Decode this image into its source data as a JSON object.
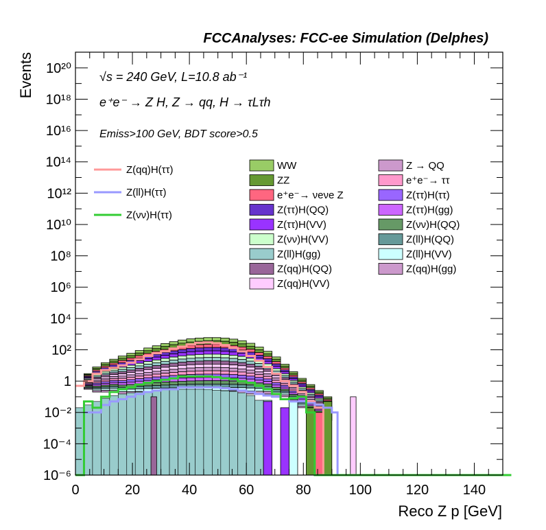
{
  "chart_data": {
    "type": "stacked-histogram",
    "title": "FCCAnalyses: FCC-ee Simulation (Delphes)",
    "annotations": {
      "line1": "√s = 240 GeV, L=10.8 ab⁻¹",
      "line2": "e⁺e⁻ → Z H, Z → qq, H → τLτh",
      "line3": "Emiss>100 GeV, BDT score>0.5"
    },
    "xlabel": "Reco Z p [GeV]",
    "ylabel": "Events",
    "xlim": [
      0,
      150
    ],
    "ylim": [
      1e-06,
      1e+21
    ],
    "yscale": "log",
    "x_ticks": [
      "0",
      "20",
      "40",
      "60",
      "80",
      "100",
      "120",
      "140"
    ],
    "y_ticks": [
      "10⁻⁶",
      "10⁻⁴",
      "10⁻²",
      "1",
      "10²",
      "10⁴",
      "10⁶",
      "10⁸",
      "10¹⁰",
      "10¹²",
      "10¹⁴",
      "10¹⁶",
      "10¹⁸",
      "10²⁰"
    ],
    "bin_width_gev": 3,
    "stack_order_top_to_bottom": [
      "WW",
      "ZZ",
      "e⁺e⁻→ νeνe Z",
      "Z(ττ)H(QQ)",
      "Z(ττ)H(VV)",
      "Z(νν)H(VV)",
      "Z(ll)H(gg)",
      "Z(qq)H(QQ)",
      "Z(qq)H(VV)",
      "Z → QQ",
      "e⁺e⁻→ ττ",
      "Z(ττ)H(ττ)",
      "Z(ττ)H(gg)",
      "Z(νν)H(QQ)",
      "Z(ll)H(QQ)",
      "Z(ll)H(VV)",
      "Z(qq)H(gg)"
    ],
    "stack_edges": {
      "x": [
        3,
        6,
        9,
        12,
        15,
        18,
        21,
        24,
        27,
        30,
        33,
        36,
        39,
        42,
        45,
        48,
        51,
        54,
        57,
        60,
        63,
        66,
        69,
        72,
        75,
        78,
        81,
        84,
        87
      ],
      "base": [
        0.3,
        0.2,
        0.2,
        0.2,
        0.15,
        0.15,
        0.15,
        0.15,
        0.15,
        0.15,
        0.15,
        0.15,
        0.15,
        0.15,
        0.15,
        0.15,
        0.15,
        0.15,
        0.15,
        0.15,
        0.15,
        0.15,
        0.1,
        0.1,
        0.05,
        0.02,
        0.01,
        0.005,
        0.003
      ],
      "top": [
        3,
        8,
        15,
        25,
        40,
        60,
        90,
        130,
        180,
        250,
        330,
        420,
        500,
        560,
        600,
        600,
        560,
        480,
        380,
        260,
        150,
        80,
        35,
        12,
        4,
        1.5,
        0.6,
        0.25,
        0.1
      ]
    },
    "stack_series": [
      {
        "name": "WW",
        "color": "#99cc66"
      },
      {
        "name": "ZZ",
        "color": "#669933"
      },
      {
        "name": "e⁺e⁻→ νeνe Z",
        "color": "#ff6680"
      },
      {
        "name": "Z(ττ)H(QQ)",
        "color": "#6633cc"
      },
      {
        "name": "Z(ττ)H(VV)",
        "color": "#9933ff"
      },
      {
        "name": "Z(νν)H(VV)",
        "color": "#ccffcc"
      },
      {
        "name": "Z(ll)H(gg)",
        "color": "#99cccc"
      },
      {
        "name": "Z(qq)H(QQ)",
        "color": "#996699"
      },
      {
        "name": "Z(qq)H(VV)",
        "color": "#ffccff"
      },
      {
        "name": "Z → QQ",
        "color": "#cc99cc"
      },
      {
        "name": "e⁺e⁻→ ττ",
        "color": "#ff99cc"
      },
      {
        "name": "Z(ττ)H(ττ)",
        "color": "#9966ff"
      },
      {
        "name": "Z(ττ)H(gg)",
        "color": "#cc66ff"
      },
      {
        "name": "Z(νν)H(QQ)",
        "color": "#669966"
      },
      {
        "name": "Z(ll)H(QQ)",
        "color": "#669999"
      },
      {
        "name": "Z(ll)H(VV)",
        "color": "#ccffff"
      },
      {
        "name": "Z(qq)H(gg)",
        "color": "#cc99cc"
      }
    ],
    "ll_gg_fill": {
      "x": [
        0,
        3,
        6,
        9,
        12,
        15,
        18,
        21,
        24,
        27,
        30,
        33,
        36,
        39,
        42,
        45,
        48,
        51,
        54,
        57,
        60,
        63,
        66
      ],
      "y": [
        0.02,
        0.03,
        0.05,
        0.08,
        0.12,
        0.15,
        0.18,
        0.2,
        0.22,
        0.25,
        0.28,
        0.3,
        0.3,
        0.3,
        0.3,
        0.28,
        0.26,
        0.24,
        0.22,
        0.18,
        0.12,
        0.06,
        0.06
      ]
    },
    "isolated_bars": [
      {
        "name": "Z(qq)H(QQ)",
        "x0": 26.5,
        "x1": 28.5,
        "y": 0.1,
        "color": "#996699"
      },
      {
        "name": "Z(qq)H(VV)",
        "x0": 96.5,
        "x1": 98.5,
        "y": 0.1,
        "color": "#ffccff"
      },
      {
        "name": "Z(ττ)H(VV)",
        "x0": 66,
        "x1": 69,
        "y": 0.05,
        "color": "#9933ff"
      },
      {
        "name": "Z(ττ)H(VV)",
        "x0": 72,
        "x1": 75,
        "y": 0.02,
        "color": "#9933ff"
      },
      {
        "name": "ZZ",
        "x0": 81,
        "x1": 84,
        "y": 0.02,
        "color": "#669933"
      },
      {
        "name": "ZZ",
        "x0": 87,
        "x1": 90,
        "y": 0.05,
        "color": "#669933"
      },
      {
        "name": "e⁺e⁻→ νeνe Z",
        "x0": 84,
        "x1": 87,
        "y": 0.01,
        "color": "#ff6680"
      },
      {
        "name": "Z(ll)H(VV)",
        "x0": 75,
        "x1": 78,
        "y": 0.05,
        "color": "#ccffff"
      }
    ],
    "line_series": [
      {
        "name": "Z(qq)H(ττ)",
        "color": "#ff9999",
        "x": [
          0,
          3,
          6,
          9,
          12,
          15,
          18,
          21,
          24,
          27,
          30,
          33,
          36,
          39,
          42,
          45,
          48,
          51,
          54,
          57,
          60,
          63,
          66,
          69,
          72,
          75,
          78,
          81,
          84,
          87
        ],
        "y": [
          0.5,
          1,
          3,
          5,
          7,
          10,
          15,
          25,
          40,
          60,
          80,
          120,
          160,
          220,
          280,
          300,
          260,
          200,
          130,
          80,
          40,
          20,
          8,
          3,
          1,
          0.5,
          0.2,
          0.05,
          0.02,
          1e-06
        ]
      },
      {
        "name": "Z(ll)H(ττ)",
        "color": "#9999ff",
        "x": [
          0,
          3,
          6,
          9,
          12,
          15,
          18,
          21,
          24,
          27,
          30,
          33,
          36,
          39,
          42,
          45,
          48,
          51,
          54,
          57,
          60,
          63,
          66,
          69,
          72,
          75,
          78,
          81,
          84,
          87,
          90,
          92,
          93
        ],
        "y": [
          1e-06,
          0.01,
          0.01,
          0.03,
          0.05,
          0.07,
          0.1,
          0.15,
          0.2,
          0.25,
          0.3,
          0.3,
          0.4,
          0.4,
          0.4,
          0.4,
          0.4,
          0.35,
          0.3,
          0.25,
          0.2,
          0.15,
          0.12,
          0.1,
          0.07,
          0.05,
          0.05,
          0.04,
          0.03,
          0.02,
          0.01,
          1e-06,
          1e-06
        ]
      },
      {
        "name": "Z(νν)H(ττ)",
        "color": "#33cc33",
        "x": [
          0,
          3,
          6,
          9,
          12,
          15,
          18,
          21,
          24,
          27,
          30,
          33,
          36,
          39,
          42,
          45,
          48,
          51,
          54,
          57,
          60,
          63,
          66,
          69,
          72,
          75,
          78,
          81,
          84,
          87,
          150
        ],
        "y": [
          1e-06,
          0.05,
          0.02,
          0.1,
          0.2,
          0.3,
          0.4,
          0.6,
          0.8,
          1,
          1.2,
          1.5,
          2,
          2,
          2,
          2,
          1.8,
          1.5,
          1.3,
          1,
          0.8,
          0.5,
          0.3,
          0.15,
          0.07,
          0.08,
          0.1,
          0.01,
          1e-06,
          1e-06,
          1e-06
        ]
      }
    ]
  }
}
